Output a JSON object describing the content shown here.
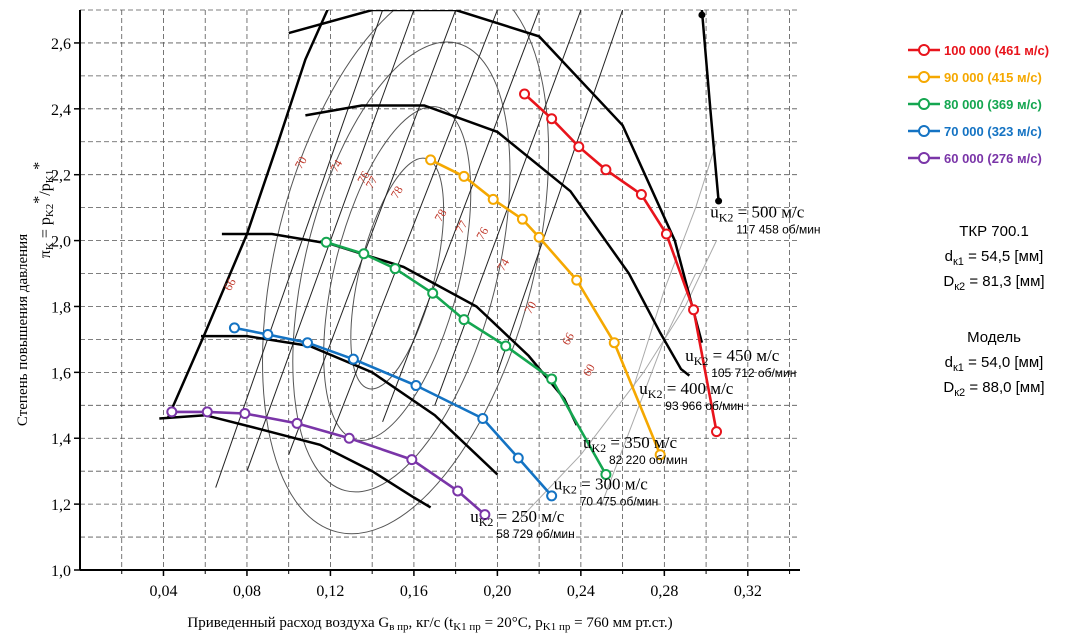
{
  "chart_data": {
    "type": "line",
    "xlabel_main": "Приведенный расход воздуха G",
    "xlabel_main_sub": "в пр",
    "xlabel_unit": ", кг/с  (t",
    "xlabel_t_sub": "K1 пр",
    "xlabel_t_val": " = 20°C, p",
    "xlabel_p_sub": "K1 пр",
    "xlabel_p_val": " = 760 мм рт.ст.)",
    "ylabel_main": "Степень повышения давления",
    "ylabel_pi": "π",
    "ylabel_pi_sub": "K",
    "ylabel_eq": " = p",
    "ylabel_p2_sub": "K2",
    "ylabel_star1": "*",
    "ylabel_div": "/p",
    "ylabel_p1_sub": "K1",
    "ylabel_star2": "*",
    "xlim": [
      0.0,
      0.345
    ],
    "ylim": [
      1.0,
      2.7
    ],
    "xticks": [
      {
        "value": 0.04,
        "label": "0,04"
      },
      {
        "value": 0.08,
        "label": "0,08"
      },
      {
        "value": 0.12,
        "label": "0,12"
      },
      {
        "value": 0.16,
        "label": "0,16"
      },
      {
        "value": 0.2,
        "label": "0,20"
      },
      {
        "value": 0.24,
        "label": "0,24"
      },
      {
        "value": 0.28,
        "label": "0,28"
      },
      {
        "value": 0.32,
        "label": "0,32"
      }
    ],
    "yticks": [
      {
        "value": 1.0,
        "label": "1,0"
      },
      {
        "value": 1.2,
        "label": "1,2"
      },
      {
        "value": 1.4,
        "label": "1,4"
      },
      {
        "value": 1.6,
        "label": "1,6"
      },
      {
        "value": 1.8,
        "label": "1,8"
      },
      {
        "value": 2.0,
        "label": "2,0"
      },
      {
        "value": 2.2,
        "label": "2,2"
      },
      {
        "value": 2.4,
        "label": "2,4"
      },
      {
        "value": 2.6,
        "label": "2,6"
      }
    ],
    "grid": true,
    "legend_position": "right",
    "series": [
      {
        "name": "100 000 (461 м/с)",
        "color": "#e8141c",
        "x": [
          0.213,
          0.226,
          0.239,
          0.252,
          0.269,
          0.281,
          0.294,
          0.305
        ],
        "y": [
          2.445,
          2.37,
          2.285,
          2.215,
          2.14,
          2.02,
          1.79,
          1.42
        ]
      },
      {
        "name": "90 000 (415 м/с)",
        "color": "#f5a800",
        "x": [
          0.168,
          0.184,
          0.198,
          0.212,
          0.22,
          0.238,
          0.256,
          0.278
        ],
        "y": [
          2.245,
          2.195,
          2.125,
          2.065,
          2.01,
          1.88,
          1.69,
          1.35
        ]
      },
      {
        "name": "80 000 (369 м/с)",
        "color": "#14a650",
        "x": [
          0.118,
          0.136,
          0.151,
          0.169,
          0.184,
          0.204,
          0.226,
          0.252
        ],
        "y": [
          1.995,
          1.96,
          1.915,
          1.84,
          1.76,
          1.68,
          1.58,
          1.29
        ]
      },
      {
        "name": "70 000 (323 м/с)",
        "color": "#1473c3",
        "x": [
          0.074,
          0.09,
          0.109,
          0.131,
          0.161,
          0.193,
          0.21,
          0.226
        ],
        "y": [
          1.735,
          1.715,
          1.69,
          1.64,
          1.56,
          1.46,
          1.34,
          1.225
        ]
      },
      {
        "name": "60 000 (276 м/с)",
        "color": "#7a35a8",
        "x": [
          0.044,
          0.061,
          0.079,
          0.104,
          0.129,
          0.159,
          0.181,
          0.194
        ],
        "y": [
          1.48,
          1.48,
          1.475,
          1.445,
          1.4,
          1.335,
          1.24,
          1.168
        ]
      }
    ],
    "black_lines": [
      {
        "x": [
          0.068,
          0.092,
          0.12,
          0.155,
          0.19,
          0.215,
          0.232,
          0.238
        ],
        "y": [
          2.02,
          2.02,
          1.99,
          1.92,
          1.8,
          1.65,
          1.52,
          1.44
        ]
      },
      {
        "x": [
          0.058,
          0.08,
          0.11,
          0.14,
          0.17,
          0.19,
          0.2
        ],
        "y": [
          1.71,
          1.71,
          1.68,
          1.6,
          1.47,
          1.35,
          1.29
        ]
      },
      {
        "x": [
          0.038,
          0.06,
          0.085,
          0.115,
          0.14,
          0.16,
          0.168
        ],
        "y": [
          1.46,
          1.47,
          1.43,
          1.38,
          1.3,
          1.22,
          1.19
        ]
      },
      {
        "x": [
          0.108,
          0.135,
          0.165,
          0.2,
          0.235,
          0.263,
          0.278,
          0.288,
          0.292
        ],
        "y": [
          2.38,
          2.41,
          2.41,
          2.33,
          2.15,
          1.9,
          1.72,
          1.61,
          1.59
        ]
      },
      {
        "x": [
          0.1,
          0.14,
          0.18,
          0.22,
          0.26,
          0.285,
          0.298
        ],
        "y": [
          2.63,
          2.7,
          2.7,
          2.62,
          2.35,
          2.0,
          1.69
        ]
      }
    ],
    "gray_lines": [
      {
        "x": [
          0.265,
          0.28,
          0.295,
          0.305
        ],
        "y": [
          1.55,
          1.85,
          2.1,
          2.3
        ]
      },
      {
        "x": [
          0.21,
          0.24,
          0.27,
          0.29,
          0.305
        ],
        "y": [
          1.15,
          1.35,
          1.6,
          1.8,
          2.0
        ]
      },
      {
        "x": [
          0.25,
          0.265,
          0.28,
          0.295
        ],
        "y": [
          1.2,
          1.45,
          1.7,
          1.9
        ]
      }
    ],
    "surge_line": {
      "x": [
        0.042,
        0.06,
        0.08,
        0.095,
        0.108,
        0.12
      ],
      "y": [
        1.46,
        1.72,
        2.02,
        2.3,
        2.55,
        2.72
      ]
    },
    "speed_lines_diag": [
      {
        "x": [
          0.2,
          0.26
        ],
        "y": [
          1.6,
          2.7
        ]
      },
      {
        "x": [
          0.17,
          0.24
        ],
        "y": [
          1.5,
          2.7
        ]
      },
      {
        "x": [
          0.145,
          0.22
        ],
        "y": [
          1.45,
          2.7
        ]
      },
      {
        "x": [
          0.12,
          0.2
        ],
        "y": [
          1.4,
          2.7
        ]
      },
      {
        "x": [
          0.1,
          0.18
        ],
        "y": [
          1.35,
          2.7
        ]
      },
      {
        "x": [
          0.08,
          0.16
        ],
        "y": [
          1.3,
          2.7
        ]
      },
      {
        "x": [
          0.065,
          0.145
        ],
        "y": [
          1.25,
          2.7
        ]
      }
    ],
    "efficiency_contours": [
      {
        "cx": 0.152,
        "cy": 1.9,
        "rx": 0.018,
        "ry": 0.36
      },
      {
        "cx": 0.152,
        "cy": 1.9,
        "rx": 0.03,
        "ry": 0.52
      },
      {
        "cx": 0.154,
        "cy": 1.92,
        "rx": 0.046,
        "ry": 0.7
      },
      {
        "cx": 0.156,
        "cy": 1.95,
        "rx": 0.062,
        "ry": 0.86
      }
    ],
    "efficiency_labels": [
      {
        "text": "70",
        "x": 0.106,
        "y": 2.215
      },
      {
        "text": "74",
        "x": 0.123,
        "y": 2.205
      },
      {
        "text": "76",
        "x": 0.136,
        "y": 2.17
      },
      {
        "text": "77",
        "x": 0.14,
        "y": 2.155
      },
      {
        "text": "78",
        "x": 0.152,
        "y": 2.125
      },
      {
        "text": "78",
        "x": 0.173,
        "y": 2.055
      },
      {
        "text": "77",
        "x": 0.183,
        "y": 2.02
      },
      {
        "text": "76",
        "x": 0.193,
        "y": 2.0
      },
      {
        "text": "74",
        "x": 0.203,
        "y": 1.905
      },
      {
        "text": "70",
        "x": 0.216,
        "y": 1.775
      },
      {
        "text": "66",
        "x": 0.234,
        "y": 1.68
      },
      {
        "text": "60",
        "x": 0.244,
        "y": 1.585
      },
      {
        "text": "66",
        "x": 0.072,
        "y": 1.845
      }
    ],
    "speed_annotations": [
      {
        "u": "u",
        "sub": "K2",
        "eq": " = 500 м/с",
        "rpm": "117 458 об/мин",
        "x": 0.302,
        "y": 2.07
      },
      {
        "u": "u",
        "sub": "K2",
        "eq": " = 450 м/с",
        "rpm": "105 712 об/мин",
        "x": 0.29,
        "y": 1.635
      },
      {
        "u": "u",
        "sub": "K2",
        "eq": " = 400 м/с",
        "rpm": "93 966 об/мин",
        "x": 0.268,
        "y": 1.535
      },
      {
        "u": "u",
        "sub": "K2",
        "eq": " = 350 м/с",
        "rpm": "82 220 об/мин",
        "x": 0.241,
        "y": 1.37
      },
      {
        "u": "u",
        "sub": "K2",
        "eq": " = 300 м/с",
        "rpm": "70 475 об/мин",
        "x": 0.227,
        "y": 1.245
      },
      {
        "u": "u",
        "sub": "K2",
        "eq": " = 250 м/с",
        "rpm": "58 729 об/мин",
        "x": 0.187,
        "y": 1.145
      }
    ]
  },
  "legend": [
    {
      "label": "100 000 (461 м/с)",
      "color": "#e8141c"
    },
    {
      "label": "90 000 (415 м/с)",
      "color": "#f5a800"
    },
    {
      "label": "80 000 (369 м/с)",
      "color": "#14a650"
    },
    {
      "label": "70 000 (323 м/с)",
      "color": "#1473c3"
    },
    {
      "label": "60 000 (276 м/с)",
      "color": "#7a35a8"
    }
  ],
  "info": {
    "tkr_title": "ТКР 700.1",
    "tkr_d1_sym": "d",
    "tkr_d1_sub": "к1",
    "tkr_d1_val": " = 54,5 [мм]",
    "tkr_d2_sym": "D",
    "tkr_d2_sub": "к2",
    "tkr_d2_val": " = 81,3 [мм]",
    "model_title": "Модель",
    "model_d1_sym": "d",
    "model_d1_sub": "к1",
    "model_d1_val": " = 54,0 [мм]",
    "model_d2_sym": "D",
    "model_d2_sub": "к2",
    "model_d2_val": " = 88,0 [мм]"
  }
}
